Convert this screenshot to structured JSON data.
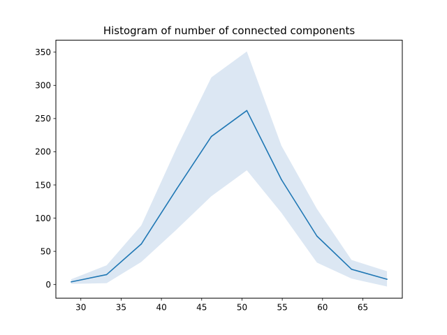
{
  "chart_data": {
    "type": "line",
    "title": "Histogram of number of connected components",
    "xlabel": "",
    "ylabel": "",
    "xlim": [
      26.9,
      69.9
    ],
    "ylim": [
      -20.5,
      368.0
    ],
    "xticks": [
      30,
      35,
      40,
      45,
      50,
      55,
      60,
      65
    ],
    "yticks": [
      0,
      50,
      100,
      150,
      200,
      250,
      300,
      350
    ],
    "grid": false,
    "legend": "none",
    "series": [
      {
        "color": "#1f77b4",
        "x": [
          28.8,
          33.2,
          37.5,
          41.9,
          46.2,
          50.6,
          54.9,
          59.3,
          63.6,
          68.0
        ],
        "y": [
          4,
          15,
          61,
          144,
          223,
          262,
          158,
          73,
          23,
          8
        ],
        "band_color": "#dce7f3",
        "band_upper": [
          8,
          29,
          89,
          206,
          312,
          351,
          209,
          114,
          37,
          20
        ],
        "band_lower": [
          1,
          2,
          34,
          83,
          133,
          172,
          108,
          33,
          9,
          -3
        ]
      }
    ]
  }
}
